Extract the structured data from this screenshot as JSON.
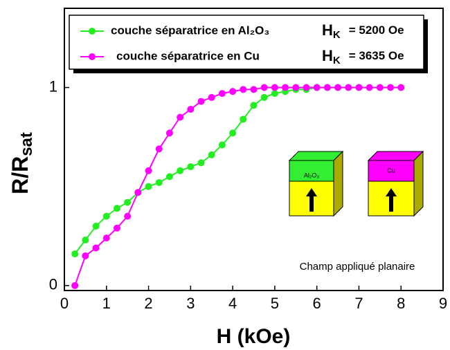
{
  "chart_data": {
    "type": "line",
    "x_label": "H (kOe)",
    "y_label": {
      "main": "R/R",
      "sub": "sat"
    },
    "xlim": [
      0,
      9
    ],
    "xticks": [
      0,
      1,
      2,
      3,
      4,
      5,
      6,
      7,
      8,
      9
    ],
    "ylim": [
      -0.025,
      1.4
    ],
    "yticks": [
      0,
      1
    ],
    "series": [
      {
        "name": "couche séparatrice en Al₂O₃",
        "color": "#22ee22",
        "annotation": {
          "symbol": "H",
          "sub": "K",
          "text": "= 5200 Oe"
        },
        "x": [
          0.25,
          0.5,
          0.75,
          1.0,
          1.25,
          1.5,
          1.75,
          2.0,
          2.25,
          2.5,
          2.75,
          3.0,
          3.25,
          3.5,
          3.75,
          4.0,
          4.25,
          4.5,
          4.75,
          5.0,
          5.25,
          5.5,
          5.75,
          6.0,
          6.25,
          6.5,
          6.75,
          7.0
        ],
        "values": [
          0.16,
          0.23,
          0.3,
          0.35,
          0.39,
          0.42,
          0.47,
          0.5,
          0.52,
          0.55,
          0.58,
          0.6,
          0.62,
          0.66,
          0.71,
          0.77,
          0.84,
          0.91,
          0.95,
          0.97,
          0.98,
          0.99,
          0.99,
          1.0,
          1.0,
          1.0,
          1.0,
          1.0
        ]
      },
      {
        "name": "couche séparatrice en Cu",
        "color": "#ff00ff",
        "annotation": {
          "symbol": "H",
          "sub": "K",
          "text": "= 3635 Oe"
        },
        "x": [
          0.25,
          0.5,
          0.75,
          1.0,
          1.25,
          1.5,
          1.75,
          2.0,
          2.25,
          2.5,
          2.75,
          3.0,
          3.25,
          3.5,
          3.75,
          4.0,
          4.25,
          4.5,
          4.75,
          5.0,
          5.25,
          5.5,
          5.75,
          6.0,
          6.25,
          6.5,
          6.75,
          7.0,
          7.25,
          7.5,
          7.75,
          8.0
        ],
        "values": [
          0.0,
          0.15,
          0.19,
          0.24,
          0.29,
          0.35,
          0.47,
          0.58,
          0.69,
          0.77,
          0.85,
          0.89,
          0.93,
          0.95,
          0.97,
          0.98,
          0.99,
          0.99,
          1.0,
          1.0,
          1.0,
          1.0,
          1.0,
          1.0,
          1.0,
          1.0,
          1.0,
          1.0,
          1.0,
          1.0,
          1.0,
          1.0
        ]
      }
    ],
    "insets": [
      "Al₂O₃",
      "Cu"
    ],
    "note": "Champ appliqué planaire"
  }
}
